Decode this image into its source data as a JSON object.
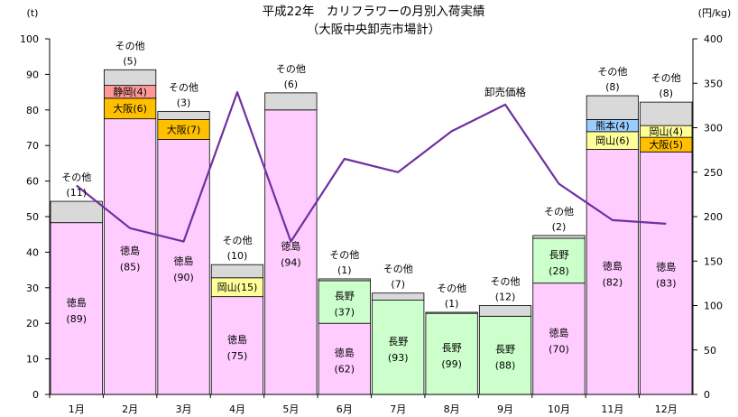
{
  "chart_data": {
    "type": "bar",
    "title": "平成22年　カリフラワーの月別入荷実績",
    "subtitle": "（大阪中央卸売市場計）",
    "y_left_unit": "(t)",
    "y_right_unit": "(円/kg)",
    "y_left_range": [
      0,
      100
    ],
    "y_left_ticks": [
      "0",
      "10",
      "20",
      "30",
      "40",
      "50",
      "60",
      "70",
      "80",
      "90",
      "100"
    ],
    "y_right_range": [
      0,
      400
    ],
    "y_right_ticks": [
      "0",
      "50",
      "100",
      "150",
      "200",
      "250",
      "300",
      "350",
      "400"
    ],
    "categories": [
      "1月",
      "2月",
      "3月",
      "4月",
      "5月",
      "6月",
      "7月",
      "8月",
      "9月",
      "10月",
      "11月",
      "12月"
    ],
    "bars": [
      {
        "segments": [
          {
            "name": "徳島",
            "share": "(89)",
            "value": 48.3,
            "color": "#ffccff"
          }
        ],
        "other": {
          "name": "その他",
          "share": "(11)",
          "value": 6.0
        }
      },
      {
        "segments": [
          {
            "name": "徳島",
            "share": "(85)",
            "value": 77.5,
            "color": "#ffccff"
          },
          {
            "name": "大阪",
            "share": "(6)",
            "value": 5.8,
            "color": "#ffc000"
          },
          {
            "name": "静岡",
            "share": "(4)",
            "value": 3.6,
            "color": "#ff9999"
          }
        ],
        "other": {
          "name": "その他",
          "share": "(5)",
          "value": 4.4
        }
      },
      {
        "segments": [
          {
            "name": "徳島",
            "share": "(90)",
            "value": 71.7,
            "color": "#ffccff"
          },
          {
            "name": "大阪",
            "share": "(7)",
            "value": 5.6,
            "color": "#ffc000"
          }
        ],
        "other": {
          "name": "その他",
          "share": "(3)",
          "value": 2.3
        }
      },
      {
        "segments": [
          {
            "name": "徳島",
            "share": "(75)",
            "value": 27.5,
            "color": "#ffccff"
          },
          {
            "name": "岡山",
            "share": "(15)",
            "value": 5.3,
            "color": "#ffff99"
          }
        ],
        "other": {
          "name": "その他",
          "share": "(10)",
          "value": 3.7
        }
      },
      {
        "segments": [
          {
            "name": "徳島",
            "share": "(94)",
            "value": 80.0,
            "color": "#ffccff"
          }
        ],
        "other": {
          "name": "その他",
          "share": "(6)",
          "value": 4.8
        }
      },
      {
        "segments": [
          {
            "name": "徳島",
            "share": "(62)",
            "value": 20.0,
            "color": "#ffccff"
          },
          {
            "name": "長野",
            "share": "(37)",
            "value": 12.0,
            "color": "#ccffcc"
          }
        ],
        "other": {
          "name": "その他",
          "share": "(1)",
          "value": 0.5
        }
      },
      {
        "segments": [
          {
            "name": "長野",
            "share": "(93)",
            "value": 26.5,
            "color": "#ccffcc"
          }
        ],
        "other": {
          "name": "その他",
          "share": "(7)",
          "value": 2.0
        }
      },
      {
        "segments": [
          {
            "name": "長野",
            "share": "(99)",
            "value": 22.8,
            "color": "#ccffcc"
          }
        ],
        "other": {
          "name": "その他",
          "share": "(1)",
          "value": 0.3
        }
      },
      {
        "segments": [
          {
            "name": "長野",
            "share": "(88)",
            "value": 22.0,
            "color": "#ccffcc"
          }
        ],
        "other": {
          "name": "その他",
          "share": "(12)",
          "value": 3.0
        }
      },
      {
        "segments": [
          {
            "name": "徳島",
            "share": "(70)",
            "value": 31.3,
            "color": "#ffccff"
          },
          {
            "name": "長野",
            "share": "(28)",
            "value": 12.6,
            "color": "#ccffcc"
          }
        ],
        "other": {
          "name": "その他",
          "share": "(2)",
          "value": 0.8
        }
      },
      {
        "segments": [
          {
            "name": "徳島",
            "share": "(82)",
            "value": 68.9,
            "color": "#ffccff"
          },
          {
            "name": "岡山",
            "share": "(6)",
            "value": 5.0,
            "color": "#ffff99"
          },
          {
            "name": "熊本",
            "share": "(4)",
            "value": 3.4,
            "color": "#99ccff"
          }
        ],
        "other": {
          "name": "その他",
          "share": "(8)",
          "value": 6.7
        }
      },
      {
        "segments": [
          {
            "name": "徳島",
            "share": "(83)",
            "value": 68.2,
            "color": "#ffccff"
          },
          {
            "name": "大阪",
            "share": "(5)",
            "value": 4.1,
            "color": "#ffc000"
          },
          {
            "name": "岡山",
            "share": "(4)",
            "value": 3.3,
            "color": "#ffff99"
          }
        ],
        "other": {
          "name": "その他",
          "share": "(8)",
          "value": 6.6
        }
      }
    ],
    "other_color": "#d9d9d9",
    "price_series": {
      "name": "卸売価格",
      "color": "#7030a0",
      "values": [
        235,
        187,
        172,
        340,
        172,
        265,
        250,
        296,
        326,
        237,
        196,
        192
      ]
    },
    "grid": false,
    "legend": "none"
  }
}
